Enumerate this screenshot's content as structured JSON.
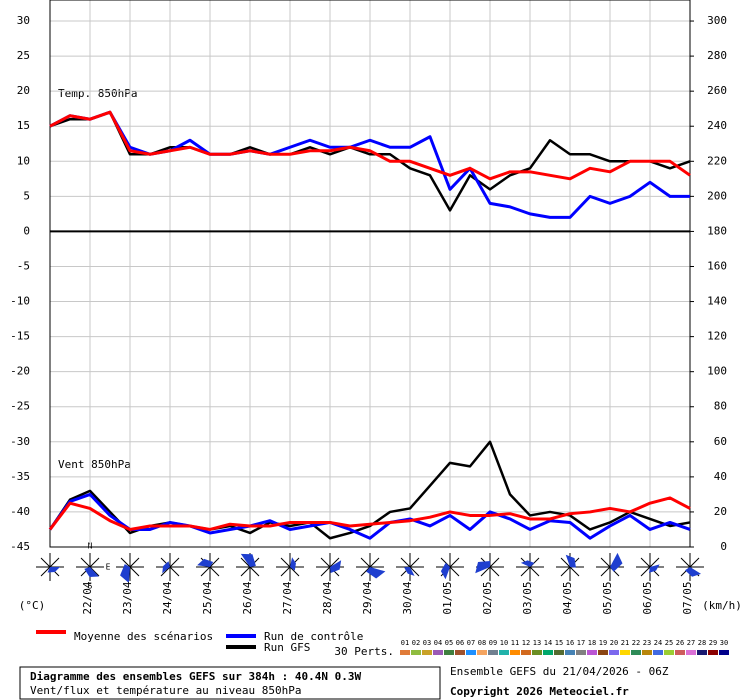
{
  "chart_data": {
    "type": "line",
    "title": "Diagramme des ensembles GEFS sur 384h : 40.4N 0.3W",
    "subtitle": "Vent/flux et température au niveau 850hPa",
    "run_label": "Ensemble GEFS du 21/04/2026 - 06Z",
    "copyright": "Copyright 2026 Meteociel.fr",
    "annotations": [
      "Temp. 850hPa",
      "Vent 850hPa"
    ],
    "y_unit": "(°C)",
    "y2_unit": "(km/h)",
    "compass": [
      "N",
      "S",
      "E"
    ],
    "x": [
      0,
      12,
      24,
      36,
      48,
      60,
      72,
      84,
      96,
      108,
      120,
      132,
      144,
      156,
      168,
      180,
      192,
      204,
      216,
      228,
      240,
      252,
      264,
      276,
      288,
      300,
      312,
      324,
      336,
      348,
      360,
      372,
      384
    ],
    "xlim": [
      0,
      384
    ],
    "xticks": [
      {
        "value": 24,
        "label": "22/04"
      },
      {
        "value": 48,
        "label": "23/04"
      },
      {
        "value": 72,
        "label": "24/04"
      },
      {
        "value": 96,
        "label": "25/04"
      },
      {
        "value": 120,
        "label": "26/04"
      },
      {
        "value": 144,
        "label": "27/04"
      },
      {
        "value": 168,
        "label": "28/04"
      },
      {
        "value": 192,
        "label": "29/04"
      },
      {
        "value": 216,
        "label": "30/04"
      },
      {
        "value": 240,
        "label": "01/05"
      },
      {
        "value": 264,
        "label": "02/05"
      },
      {
        "value": 288,
        "label": "03/05"
      },
      {
        "value": 312,
        "label": "04/05"
      },
      {
        "value": 336,
        "label": "05/05"
      },
      {
        "value": 360,
        "label": "06/05"
      },
      {
        "value": 384,
        "label": "07/05"
      }
    ],
    "ylim": [
      -45,
      33
    ],
    "yticks": [
      30,
      25,
      20,
      15,
      10,
      5,
      0,
      -5,
      -10,
      -15,
      -20,
      -25,
      -30,
      -35,
      -40,
      -45
    ],
    "y2lim": [
      0,
      312
    ],
    "y2ticks": [
      300,
      280,
      260,
      240,
      220,
      200,
      180,
      160,
      140,
      120,
      100,
      80,
      60,
      40,
      20,
      0
    ],
    "grid": true,
    "series": [
      {
        "name": "Moyenne des scénarios",
        "color": "#ff0000",
        "values": [
          15,
          16.5,
          16,
          17,
          11.5,
          11,
          11.5,
          12,
          11,
          11,
          11.5,
          11,
          11,
          11.5,
          11.5,
          12,
          11.5,
          10,
          10,
          9,
          8,
          9,
          7.5,
          8.5,
          8.5,
          8,
          7.5,
          9,
          8.5,
          10,
          10,
          10,
          8
        ]
      },
      {
        "name": "Run de contrôle",
        "color": "#0000ff",
        "values": [
          15,
          16.5,
          16,
          17,
          12,
          11,
          11.5,
          13,
          11,
          11,
          11.5,
          11,
          12,
          13,
          12,
          12,
          13,
          12,
          12,
          13.5,
          6,
          9,
          4,
          3.5,
          2.5,
          2,
          2,
          5,
          4,
          5,
          7,
          5,
          5
        ]
      },
      {
        "name": "Run GFS",
        "color": "#000000",
        "values": [
          15,
          16,
          16,
          17,
          11,
          11,
          12,
          12,
          11,
          11,
          12,
          11,
          11,
          12,
          11,
          12,
          11,
          11,
          9,
          8,
          3,
          8,
          6,
          8,
          9,
          13,
          11,
          11,
          10,
          10,
          10,
          9,
          10
        ]
      },
      {
        "name": "Moyenne des scénarios",
        "color": "#ff0000",
        "axis": "y2",
        "values": [
          10,
          25,
          22,
          15,
          10,
          12,
          12,
          12,
          10,
          13,
          12,
          12,
          14,
          14,
          14,
          12,
          13,
          14,
          15,
          17,
          20,
          18,
          18,
          19,
          16,
          16,
          19,
          20,
          22,
          20,
          25,
          28,
          22
        ]
      },
      {
        "name": "Run de contrôle",
        "color": "#0000ff",
        "axis": "y2",
        "values": [
          10,
          26,
          30,
          18,
          10,
          10,
          14,
          12,
          8,
          10,
          12,
          15,
          10,
          12,
          14,
          10,
          5,
          14,
          16,
          12,
          18,
          10,
          20,
          16,
          10,
          15,
          14,
          5,
          12,
          18,
          10,
          14,
          10
        ]
      },
      {
        "name": "Run GFS",
        "color": "#000000",
        "axis": "y2",
        "values": [
          10,
          27,
          32,
          20,
          8,
          12,
          14,
          12,
          10,
          12,
          8,
          14,
          12,
          14,
          5,
          8,
          12,
          20,
          22,
          35,
          48,
          46,
          60,
          30,
          18,
          20,
          18,
          10,
          14,
          20,
          16,
          12,
          14
        ]
      }
    ],
    "perturbations": {
      "label": "30 Perts.",
      "members": [
        {
          "name": "01",
          "color": "#e07b39"
        },
        {
          "name": "02",
          "color": "#8fbc3f"
        },
        {
          "name": "03",
          "color": "#c9a227"
        },
        {
          "name": "04",
          "color": "#9b59b6"
        },
        {
          "name": "05",
          "color": "#3f7f3f"
        },
        {
          "name": "06",
          "color": "#a0522d"
        },
        {
          "name": "07",
          "color": "#1e90ff"
        },
        {
          "name": "08",
          "color": "#f4a460"
        },
        {
          "name": "09",
          "color": "#708090"
        },
        {
          "name": "10",
          "color": "#20b2aa"
        },
        {
          "name": "11",
          "color": "#ff8c00"
        },
        {
          "name": "12",
          "color": "#d2691e"
        },
        {
          "name": "13",
          "color": "#6b8e23"
        },
        {
          "name": "14",
          "color": "#00a86b"
        },
        {
          "name": "15",
          "color": "#556b2f"
        },
        {
          "name": "16",
          "color": "#4682b4"
        },
        {
          "name": "17",
          "color": "#808080"
        },
        {
          "name": "18",
          "color": "#ba55d3"
        },
        {
          "name": "19",
          "color": "#8b4513"
        },
        {
          "name": "20",
          "color": "#7b68ee"
        },
        {
          "name": "21",
          "color": "#ffd700"
        },
        {
          "name": "22",
          "color": "#2e8b57"
        },
        {
          "name": "23",
          "color": "#b8860b"
        },
        {
          "name": "24",
          "color": "#4169e1"
        },
        {
          "name": "25",
          "color": "#9acd32"
        },
        {
          "name": "26",
          "color": "#cd5c5c"
        },
        {
          "name": "27",
          "color": "#da70d6"
        },
        {
          "name": "28",
          "color": "#191970"
        },
        {
          "name": "29",
          "color": "#8b0000"
        },
        {
          "name": "30",
          "color": "#00008b"
        }
      ]
    }
  }
}
